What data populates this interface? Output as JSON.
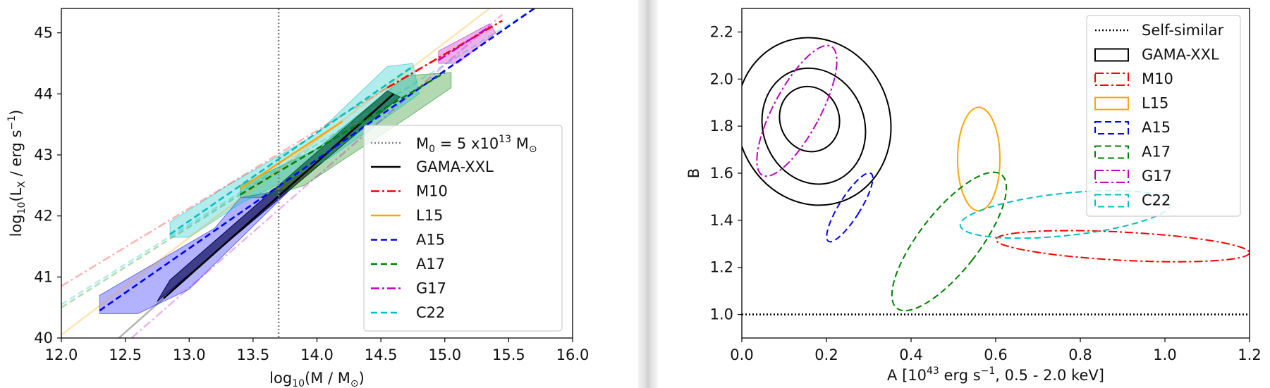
{
  "chart_data": [
    {
      "type": "line",
      "xlabel": "log10(M / M⊙)",
      "ylabel": "log10(LX / erg s−1)",
      "xlim": [
        12.0,
        16.0
      ],
      "ylim": [
        40,
        45.4
      ],
      "xticks": [
        "12.0",
        "12.5",
        "13.0",
        "13.5",
        "14.0",
        "14.5",
        "15.0",
        "15.5",
        "16.0"
      ],
      "yticks": [
        "40",
        "41",
        "42",
        "43",
        "44",
        "45"
      ],
      "legend_position": "lower-right",
      "reference_line": {
        "label": "M0 = 5 x1013 M⊙",
        "x": 13.7,
        "color": "#808080"
      },
      "series": [
        {
          "name": "GAMA-XXL",
          "color": "#000000",
          "style": "solid",
          "fit": [
            [
              12.8,
              40.65
            ],
            [
              14.6,
              44.0
            ]
          ],
          "extrapolation": [
            [
              12.45,
              40.0
            ],
            [
              12.8,
              40.65
            ]
          ],
          "band_lower": [
            [
              12.75,
              40.6
            ],
            [
              14.65,
              43.95
            ]
          ],
          "band_upper": [
            [
              12.85,
              40.95
            ],
            [
              14.55,
              44.05
            ]
          ]
        },
        {
          "name": "M10",
          "color": "#ff0000",
          "style": "dashdot",
          "fit": [
            [
              14.55,
              44.1
            ],
            [
              15.45,
              45.2
            ]
          ],
          "extrapolation": [
            [
              12.0,
              40.85
            ],
            [
              14.55,
              44.1
            ]
          ]
        },
        {
          "name": "L15",
          "color": "#ffa500",
          "style": "solid",
          "fit": [
            [
              13.4,
              42.45
            ],
            [
              14.2,
              43.55
            ]
          ],
          "extrapolation": [
            [
              12.0,
              40.05
            ],
            [
              15.35,
              45.4
            ]
          ]
        },
        {
          "name": "A15",
          "color": "#0000ff",
          "style": "dashed",
          "fit": [
            [
              12.3,
              40.45
            ],
            [
              15.7,
              45.4
            ]
          ],
          "band": [
            [
              12.3,
              40.4
            ],
            [
              12.3,
              40.7
            ],
            [
              13.2,
              41.8
            ],
            [
              13.4,
              42.3
            ],
            [
              13.8,
              42.45
            ],
            [
              13.0,
              40.8
            ],
            [
              12.6,
              40.4
            ]
          ]
        },
        {
          "name": "A17",
          "color": "#008000",
          "style": "dashed",
          "fit": [
            [
              13.4,
              42.35
            ],
            [
              15.0,
              44.35
            ]
          ],
          "extrapolation": [
            [
              12.0,
              40.5
            ],
            [
              13.4,
              42.35
            ]
          ],
          "band": [
            [
              13.4,
              42.3
            ],
            [
              13.4,
              42.5
            ],
            [
              14.0,
              43.1
            ],
            [
              14.7,
              44.3
            ],
            [
              15.05,
              44.35
            ],
            [
              15.05,
              44.1
            ],
            [
              14.7,
              43.6
            ],
            [
              13.9,
              42.5
            ],
            [
              13.6,
              42.3
            ]
          ]
        },
        {
          "name": "G17",
          "color": "#bf00bf",
          "style": "dashdot",
          "fit": [
            [
              14.95,
              44.55
            ],
            [
              15.35,
              45.1
            ]
          ],
          "extrapolation": [
            [
              12.55,
              40.0
            ],
            [
              15.45,
              45.3
            ]
          ],
          "band": [
            [
              14.95,
              44.5
            ],
            [
              14.95,
              44.7
            ],
            [
              15.35,
              45.15
            ],
            [
              15.4,
              45.0
            ],
            [
              15.1,
              44.5
            ]
          ]
        },
        {
          "name": "C22",
          "color": "#00bfbf",
          "style": "dashed",
          "fit": [
            [
              12.85,
              41.7
            ],
            [
              14.75,
              44.45
            ]
          ],
          "extrapolation": [
            [
              12.0,
              40.55
            ],
            [
              15.7,
              45.4
            ]
          ],
          "band": [
            [
              12.85,
              41.65
            ],
            [
              12.85,
              41.9
            ],
            [
              13.3,
              42.5
            ],
            [
              14.0,
              43.35
            ],
            [
              14.55,
              44.45
            ],
            [
              14.75,
              44.5
            ],
            [
              14.8,
              44.0
            ],
            [
              14.1,
              42.95
            ],
            [
              13.4,
              42.2
            ],
            [
              13.0,
              41.65
            ]
          ]
        }
      ]
    },
    {
      "type": "scatter",
      "xlabel": "A [1043 erg s−1, 0.5 - 2.0 keV]",
      "ylabel": "B",
      "xlim": [
        0.0,
        1.2
      ],
      "ylim": [
        0.9,
        2.3
      ],
      "xticks": [
        "0.0",
        "0.2",
        "0.4",
        "0.6",
        "0.8",
        "1.0",
        "1.2"
      ],
      "yticks": [
        "1.0",
        "1.2",
        "1.4",
        "1.6",
        "1.8",
        "2.0",
        "2.2"
      ],
      "legend_position": "upper-right",
      "reference_line": {
        "label": "Self-similar",
        "y": 1.0,
        "color": "#000000"
      },
      "series": [
        {
          "name": "GAMA-XXL",
          "color": "#000000",
          "style": "solid",
          "ellipses": [
            {
              "cx": 0.16,
              "cy": 1.83,
              "rx": 0.07,
              "ry": 0.14,
              "angle": -20
            },
            {
              "cx": 0.17,
              "cy": 1.8,
              "rx": 0.12,
              "ry": 0.25,
              "angle": -20
            },
            {
              "cx": 0.17,
              "cy": 1.82,
              "rx": 0.18,
              "ry": 0.36,
              "angle": -20
            }
          ]
        },
        {
          "name": "M10",
          "color": "#ff0000",
          "style": "dashdot",
          "ellipses": [
            {
              "cx": 0.9,
              "cy": 1.29,
              "rx": 0.3,
              "ry": 0.06,
              "angle": 3
            }
          ]
        },
        {
          "name": "L15",
          "color": "#ffa500",
          "style": "solid",
          "ellipses": [
            {
              "cx": 0.56,
              "cy": 1.66,
              "rx": 0.05,
              "ry": 0.22,
              "angle": 0
            }
          ]
        },
        {
          "name": "A15",
          "color": "#0000ff",
          "style": "dashed",
          "ellipses": [
            {
              "cx": 0.255,
              "cy": 1.455,
              "rx": 0.025,
              "ry": 0.17,
              "angle": 32
            }
          ]
        },
        {
          "name": "A17",
          "color": "#008000",
          "style": "dashed",
          "ellipses": [
            {
              "cx": 0.49,
              "cy": 1.31,
              "rx": 0.07,
              "ry": 0.36,
              "angle": 38
            }
          ]
        },
        {
          "name": "G17",
          "color": "#bf00bf",
          "style": "dashdot",
          "ellipses": [
            {
              "cx": 0.13,
              "cy": 1.865,
              "rx": 0.055,
              "ry": 0.31,
              "angle": 28
            }
          ]
        },
        {
          "name": "C22",
          "color": "#00bfbf",
          "style": "dashed",
          "ellipses": [
            {
              "cx": 0.765,
              "cy": 1.425,
              "rx": 0.25,
              "ry": 0.09,
              "angle": -6
            }
          ]
        }
      ]
    }
  ],
  "legend_left": {
    "m0": "M",
    "m0_sub": "0",
    "m0_eq": " = 5 x10",
    "m0_sup": "13",
    "m0_unit": " M",
    "m0_sun": "⊙",
    "items": [
      "GAMA-XXL",
      "M10",
      "L15",
      "A15",
      "A17",
      "G17",
      "C22"
    ]
  },
  "legend_right": {
    "items": [
      "Self-similar",
      "GAMA-XXL",
      "M10",
      "L15",
      "A15",
      "A17",
      "G17",
      "C22"
    ]
  },
  "axis_labels": {
    "left_x_main": "log",
    "left_x_sub": "10",
    "left_x_rest": "(M / M",
    "left_x_sun": "⊙",
    "left_x_close": ")",
    "left_y_main": "log",
    "left_y_sub": "10",
    "left_y_rest": "(L",
    "left_y_subX": "X",
    "left_y_rest2": " / erg s",
    "left_y_sup": "−1",
    "left_y_close": ")",
    "right_x_main": "A [10",
    "right_x_sup": "43",
    "right_x_mid": " erg s",
    "right_x_sup2": "−1",
    "right_x_end": ", 0.5 - 2.0 keV]",
    "right_y": "B"
  }
}
